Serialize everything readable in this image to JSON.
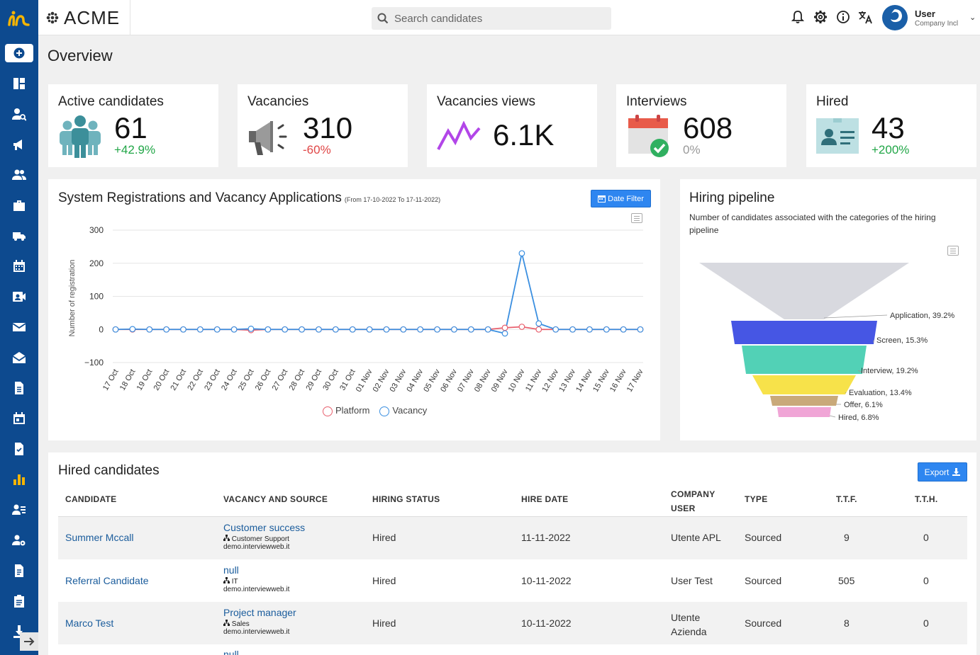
{
  "brand": {
    "name": "ACME"
  },
  "search": {
    "placeholder": "Search candidates"
  },
  "user": {
    "name": "User",
    "company": "Company Incl"
  },
  "page": {
    "title": "Overview"
  },
  "kpis": [
    {
      "label": "Active candidates",
      "value": "61",
      "change": "+42.9%",
      "icon": "people-icon"
    },
    {
      "label": "Vacancies",
      "value": "310",
      "change": "-60%",
      "icon": "megaphone-icon"
    },
    {
      "label": "Vacancies views",
      "value": "6.1K",
      "change": "",
      "icon": "trend-icon"
    },
    {
      "label": "Interviews",
      "value": "608",
      "change": "0%",
      "icon": "calendar-check-icon"
    },
    {
      "label": "Hired",
      "value": "43",
      "change": "+200%",
      "icon": "id-card-icon"
    }
  ],
  "registrations_chart": {
    "title": "System Registrations and Vacancy Applications",
    "subtitle": "(From 17-10-2022 To 17-11-2022)",
    "date_filter_label": "Date Filter"
  },
  "pipeline": {
    "title": "Hiring pipeline",
    "subtitle": "Number of candidates associated with the categories of the hiring pipeline"
  },
  "hired": {
    "title": "Hired candidates",
    "export_label": "Export",
    "columns": [
      "CANDIDATE",
      "VACANCY AND SOURCE",
      "HIRING STATUS",
      "HIRE DATE",
      "COMPANY USER",
      "TYPE",
      "T.T.F.",
      "T.T.H."
    ],
    "rows": [
      {
        "candidate": "Summer Mccall",
        "vacancy": "Customer success",
        "department": "Customer Support",
        "source": "demo.interviewweb.it",
        "status": "Hired",
        "hire_date": "11-11-2022",
        "company_user": "Utente APL",
        "type": "Sourced",
        "ttf": "9",
        "tth": "0"
      },
      {
        "candidate": "Referral Candidate",
        "vacancy": "null",
        "department": "IT",
        "source": "demo.interviewweb.it",
        "status": "Hired",
        "hire_date": "10-11-2022",
        "company_user": "User Test",
        "type": "Sourced",
        "ttf": "505",
        "tth": "0"
      },
      {
        "candidate": "Marco Test",
        "vacancy": "Project manager",
        "department": "Sales",
        "source": "demo.interviewweb.it",
        "status": "Hired",
        "hire_date": "10-11-2022",
        "company_user": "Utente Azienda",
        "type": "Sourced",
        "ttf": "8",
        "tth": "0"
      }
    ],
    "partial_row_text": "null"
  },
  "colors": {
    "sidebar": "#0d4a8f",
    "accent": "#2e86f0",
    "platform": "#e8606e",
    "vacancy": "#3b8fe0"
  },
  "chart_data": [
    {
      "type": "line",
      "title": "System Registrations and Vacancy Applications",
      "ylabel": "Number of registration",
      "ylim": [
        -100,
        300
      ],
      "yticks": [
        300,
        200,
        100,
        0,
        -100
      ],
      "grid": true,
      "legend": "bottom",
      "x": [
        "17 Oct",
        "18 Oct",
        "19 Oct",
        "20 Oct",
        "21 Oct",
        "22 Oct",
        "23 Oct",
        "24 Oct",
        "25 Oct",
        "26 Oct",
        "27 Oct",
        "28 Oct",
        "29 Oct",
        "30 Oct",
        "31 Oct",
        "01 Nov",
        "02 Nov",
        "03 Nov",
        "04 Nov",
        "05 Nov",
        "06 Nov",
        "07 Nov",
        "08 Nov",
        "09 Nov",
        "10 Nov",
        "11 Nov",
        "12 Nov",
        "13 Nov",
        "14 Nov",
        "15 Nov",
        "16 Nov",
        "17 Nov"
      ],
      "series": [
        {
          "name": "Platform",
          "values": [
            0,
            0,
            0,
            0,
            0,
            0,
            0,
            0,
            -2,
            0,
            0,
            0,
            0,
            0,
            0,
            0,
            0,
            0,
            0,
            0,
            0,
            0,
            0,
            5,
            8,
            0,
            0,
            0,
            0,
            0,
            0,
            0
          ]
        },
        {
          "name": "Vacancy",
          "values": [
            0,
            1,
            0,
            0,
            0,
            0,
            0,
            0,
            2,
            0,
            0,
            0,
            0,
            0,
            0,
            0,
            0,
            0,
            0,
            0,
            0,
            0,
            0,
            -12,
            230,
            18,
            0,
            0,
            0,
            0,
            0,
            0
          ]
        }
      ]
    },
    {
      "type": "funnel",
      "title": "Hiring pipeline",
      "categories": [
        "Application",
        "Screen",
        "Interview",
        "Evaluation",
        "Offer",
        "Hired"
      ],
      "values": [
        39.2,
        15.3,
        19.2,
        13.4,
        6.1,
        6.8
      ],
      "labels": [
        "Application, 39.2%",
        "Screen, 15.3%",
        "Interview, 19.2%",
        "Evaluation, 13.4%",
        "Offer, 6.1%",
        "Hired, 6.8%"
      ],
      "colors": [
        "#d8d9df",
        "#4656e4",
        "#52d1b6",
        "#f7e24a",
        "#c9a97a",
        "#f0a5d6"
      ]
    }
  ]
}
